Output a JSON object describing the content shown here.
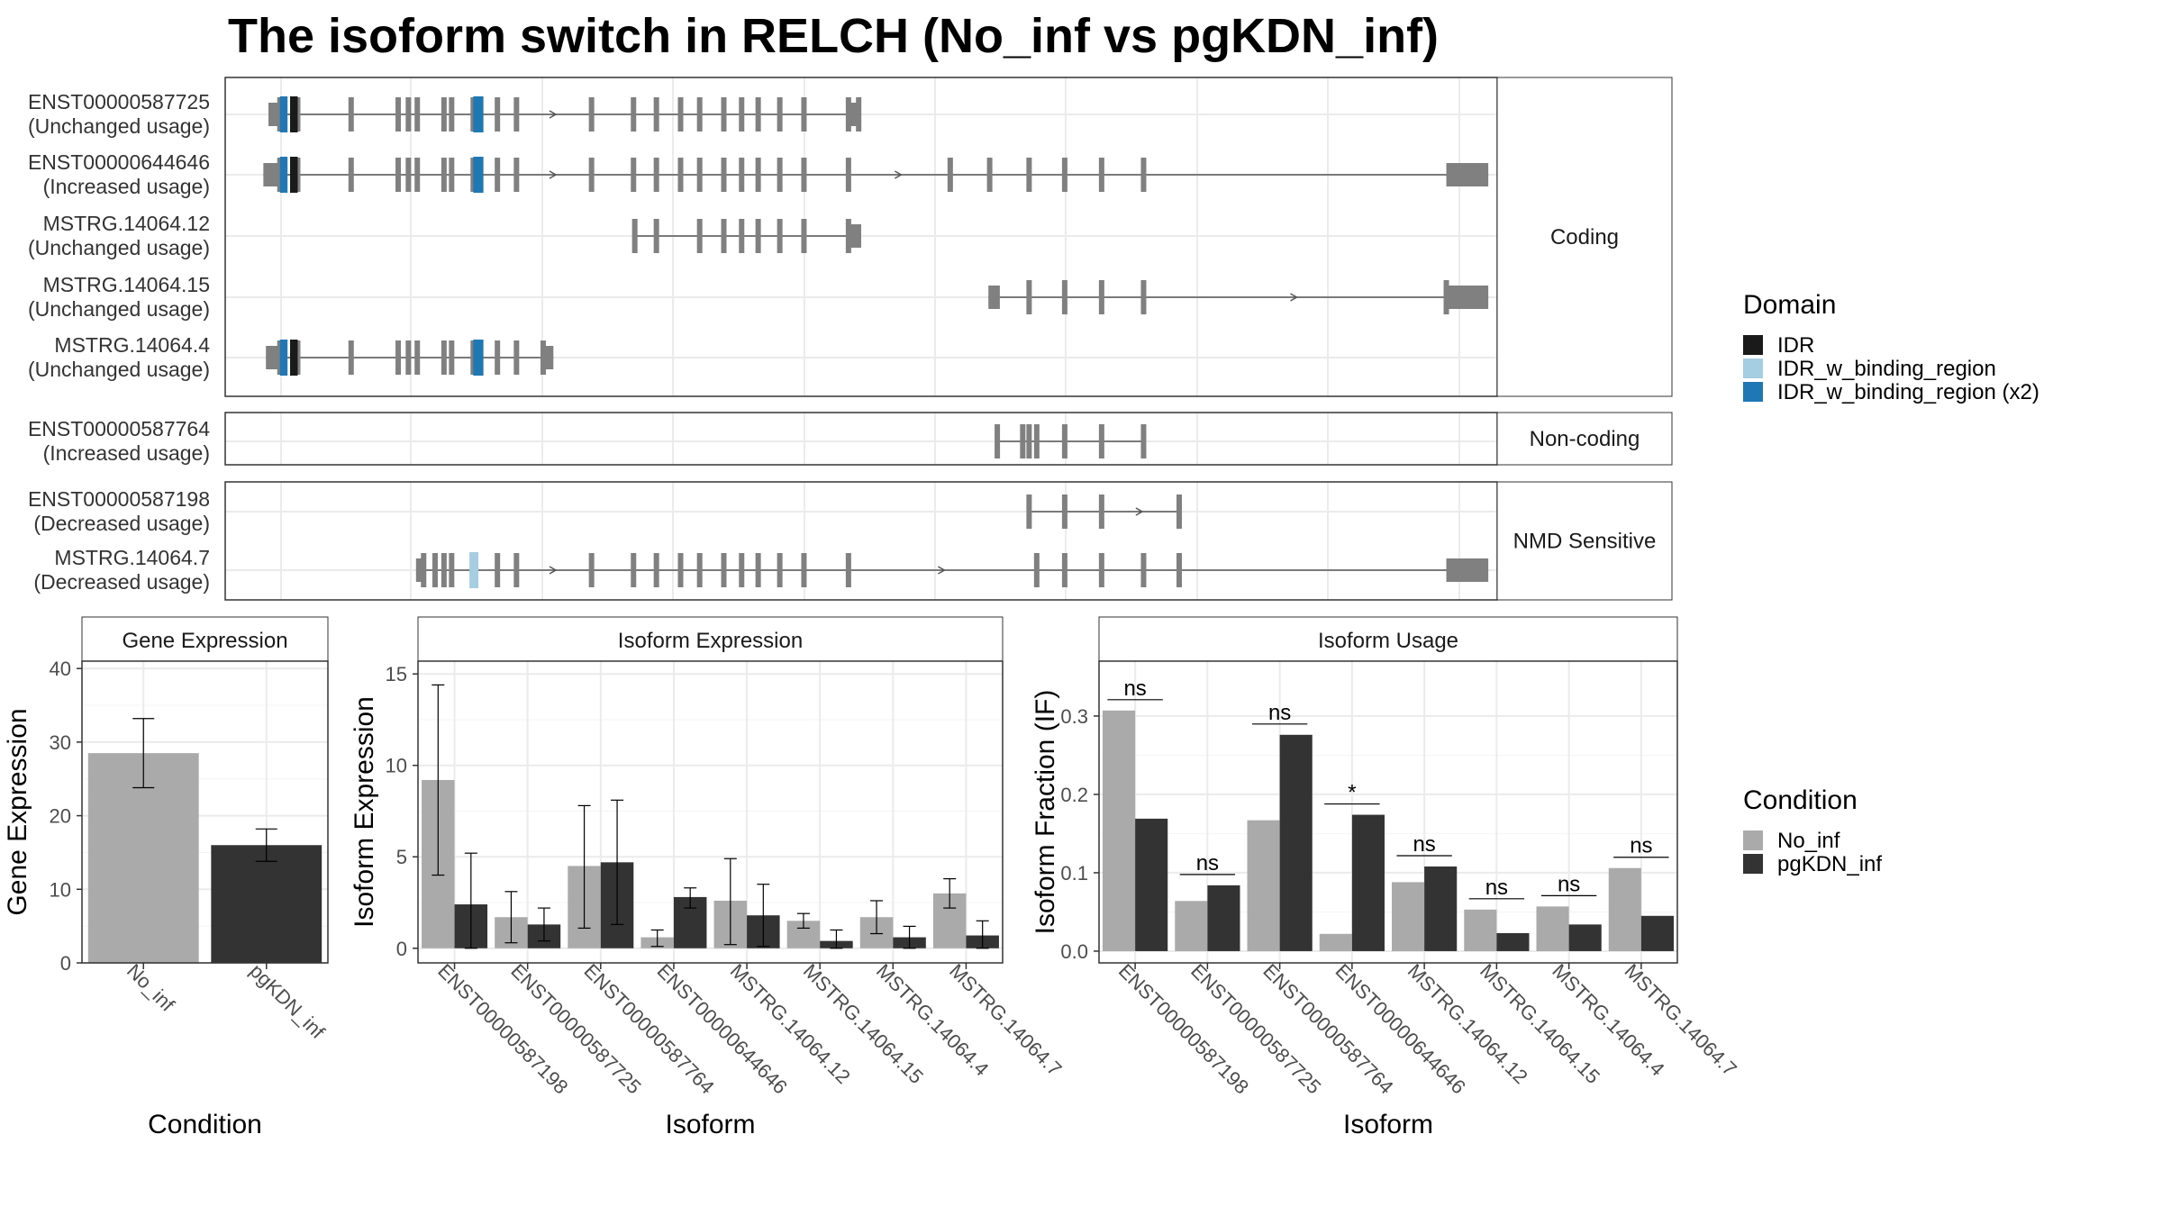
{
  "title": "The isoform switch in RELCH (No_inf vs pgKDN_inf)",
  "colors": {
    "exon": "#808080",
    "IDR": "#1a1a1a",
    "IDR_w_binding_region": "#a6cee3",
    "IDR_w_binding_region_x2": "#1f78b4",
    "No_inf": "#aaaaaa",
    "pgKDN_inf": "#333333"
  },
  "structure_panels": [
    {
      "name": "Coding",
      "transcripts": [
        {
          "id": "ENST00000587725",
          "usage": "(Unchanged usage)",
          "start": 0.034,
          "end": 0.5,
          "utr5": [
            0.034,
            0.043
          ],
          "exons": [
            0.043,
            0.057,
            0.099,
            0.136,
            0.144,
            0.151,
            0.172,
            0.178,
            0.195,
            0.214,
            0.229,
            0.288,
            0.321,
            0.339,
            0.358,
            0.373,
            0.392,
            0.406,
            0.419,
            0.436,
            0.455,
            0.49,
            0.498
          ],
          "utr3": [
            0.49,
            0.5
          ],
          "idr": [
            0.043,
            0.049,
            0.051,
            0.057
          ],
          "domains": [
            {
              "from": 0.043,
              "to": 0.049,
              "type": "IDR_w_binding_region_x2"
            },
            {
              "from": 0.051,
              "to": 0.057,
              "type": "IDR"
            },
            {
              "from": 0.195,
              "to": 0.203,
              "type": "IDR_w_binding_region_x2"
            }
          ]
        },
        {
          "id": "ENST00000644646",
          "usage": "(Increased usage)",
          "start": 0.03,
          "end": 0.993,
          "utr5": [
            0.03,
            0.043
          ],
          "exons": [
            0.043,
            0.057,
            0.099,
            0.136,
            0.144,
            0.151,
            0.172,
            0.178,
            0.195,
            0.214,
            0.229,
            0.288,
            0.321,
            0.339,
            0.358,
            0.373,
            0.392,
            0.406,
            0.419,
            0.436,
            0.455,
            0.49,
            0.57,
            0.601,
            0.632,
            0.66,
            0.689,
            0.722
          ],
          "utr3": [
            0.96,
            0.993
          ],
          "domains": [
            {
              "from": 0.043,
              "to": 0.049,
              "type": "IDR_w_binding_region_x2"
            },
            {
              "from": 0.051,
              "to": 0.057,
              "type": "IDR"
            },
            {
              "from": 0.195,
              "to": 0.203,
              "type": "IDR_w_binding_region_x2"
            }
          ]
        },
        {
          "id": "MSTRG.14064.12",
          "usage": "(Unchanged usage)",
          "start": 0.322,
          "end": 0.5,
          "utr5": [],
          "exons": [
            0.322,
            0.339,
            0.373,
            0.392,
            0.406,
            0.419,
            0.436,
            0.455,
            0.49
          ],
          "utr3": [
            0.49,
            0.5
          ],
          "domains": []
        },
        {
          "id": "MSTRG.14064.15",
          "usage": "(Unchanged usage)",
          "start": 0.6,
          "end": 0.993,
          "utr5": [
            0.6,
            0.609
          ],
          "exons": [
            0.632,
            0.66,
            0.689,
            0.722,
            0.96
          ],
          "utr3": [
            0.96,
            0.993
          ],
          "domains": []
        },
        {
          "id": "MSTRG.14064.4",
          "usage": "(Unchanged usage)",
          "start": 0.032,
          "end": 0.258,
          "utr5": [
            0.032,
            0.043
          ],
          "exons": [
            0.043,
            0.057,
            0.099,
            0.136,
            0.144,
            0.151,
            0.172,
            0.178,
            0.195,
            0.214,
            0.229,
            0.25
          ],
          "utr3": [
            0.25,
            0.258
          ],
          "domains": [
            {
              "from": 0.043,
              "to": 0.049,
              "type": "IDR_w_binding_region_x2"
            },
            {
              "from": 0.051,
              "to": 0.057,
              "type": "IDR"
            },
            {
              "from": 0.195,
              "to": 0.203,
              "type": "IDR_w_binding_region_x2"
            }
          ]
        }
      ]
    },
    {
      "name": "Non-coding",
      "transcripts": [
        {
          "id": "ENST00000587764",
          "usage": "(Increased usage)",
          "start": 0.607,
          "end": 0.722,
          "utr5": [],
          "exons": [
            0.607,
            0.627,
            0.632,
            0.638,
            0.66,
            0.689,
            0.722
          ],
          "utr3": [],
          "domains": []
        }
      ]
    },
    {
      "name": "NMD Sensitive",
      "transcripts": [
        {
          "id": "ENST00000587198",
          "usage": "(Decreased usage)",
          "start": 0.632,
          "end": 0.75,
          "utr5": [],
          "exons": [
            0.632,
            0.66,
            0.689,
            0.75
          ],
          "utr3": [],
          "domains": []
        },
        {
          "id": "MSTRG.14064.7",
          "usage": "(Decreased usage)",
          "start": 0.15,
          "end": 0.993,
          "utr5": [
            0.15,
            0.156
          ],
          "exons": [
            0.156,
            0.165,
            0.172,
            0.178,
            0.214,
            0.229,
            0.288,
            0.321,
            0.339,
            0.358,
            0.373,
            0.392,
            0.406,
            0.419,
            0.436,
            0.455,
            0.49,
            0.638,
            0.66,
            0.689,
            0.722,
            0.75
          ],
          "utr3": [
            0.96,
            0.993
          ],
          "domains": [
            {
              "from": 0.192,
              "to": 0.199,
              "type": "IDR_w_binding_region"
            }
          ]
        }
      ]
    }
  ],
  "legend_domain": {
    "title": "Domain",
    "items": [
      {
        "label": "IDR",
        "color": "#1a1a1a"
      },
      {
        "label": "IDR_w_binding_region",
        "color": "#a6cee3"
      },
      {
        "label": "IDR_w_binding_region (x2)",
        "color": "#1f78b4"
      }
    ]
  },
  "legend_condition": {
    "title": "Condition",
    "items": [
      {
        "label": "No_inf",
        "color": "#aaaaaa"
      },
      {
        "label": "pgKDN_inf",
        "color": "#333333"
      }
    ]
  },
  "chart_data": [
    {
      "type": "bar",
      "title": "Gene Expression",
      "xlabel": "Condition",
      "ylabel": "Gene Expression",
      "categories": [
        "No_inf",
        "pgKDN_inf"
      ],
      "values": [
        28.5,
        16.0
      ],
      "error": [
        [
          23.8,
          33.2
        ],
        [
          13.8,
          18.2
        ]
      ],
      "ylim": [
        0,
        41
      ],
      "yticks": [
        0,
        10,
        20,
        30,
        40
      ],
      "grid": true
    },
    {
      "type": "bar",
      "title": "Isoform Expression",
      "xlabel": "Isoform",
      "ylabel": "Isoform Expression",
      "categories": [
        "ENST00000587198",
        "ENST00000587725",
        "ENST00000587764",
        "ENST00000644646",
        "MSTRG.14064.12",
        "MSTRG.14064.15",
        "MSTRG.14064.4",
        "MSTRG.14064.7"
      ],
      "series": [
        {
          "name": "No_inf",
          "values": [
            9.2,
            1.7,
            4.5,
            0.6,
            2.6,
            1.5,
            1.7,
            3.0
          ],
          "error": [
            [
              4.0,
              14.4
            ],
            [
              0.3,
              3.1
            ],
            [
              1.1,
              7.8
            ],
            [
              0.1,
              1.0
            ],
            [
              0.2,
              4.9
            ],
            [
              1.1,
              1.9
            ],
            [
              0.8,
              2.6
            ],
            [
              2.2,
              3.8
            ]
          ]
        },
        {
          "name": "pgKDN_inf",
          "values": [
            2.4,
            1.3,
            4.7,
            2.8,
            1.8,
            0.4,
            0.6,
            0.7
          ],
          "error": [
            [
              0.0,
              5.2
            ],
            [
              0.4,
              2.2
            ],
            [
              1.3,
              8.1
            ],
            [
              2.2,
              3.3
            ],
            [
              0.1,
              3.5
            ],
            [
              0.0,
              1.0
            ],
            [
              0.0,
              1.2
            ],
            [
              0.0,
              1.5
            ]
          ]
        }
      ],
      "ylim": [
        -0.8,
        15.7
      ],
      "yticks": [
        0,
        5,
        10,
        15
      ],
      "grid": true
    },
    {
      "type": "bar",
      "title": "Isoform Usage",
      "xlabel": "Isoform",
      "ylabel": "Isoform Fraction (IF)",
      "categories": [
        "ENST00000587198",
        "ENST00000587725",
        "ENST00000587764",
        "ENST00000644646",
        "MSTRG.14064.12",
        "MSTRG.14064.15",
        "MSTRG.14064.4",
        "MSTRG.14064.7"
      ],
      "series": [
        {
          "name": "No_inf",
          "values": [
            0.307,
            0.064,
            0.167,
            0.022,
            0.088,
            0.053,
            0.057,
            0.106
          ]
        },
        {
          "name": "pgKDN_inf",
          "values": [
            0.169,
            0.084,
            0.276,
            0.174,
            0.108,
            0.023,
            0.034,
            0.045
          ]
        }
      ],
      "significance": [
        "ns",
        "ns",
        "ns",
        "*",
        "ns",
        "ns",
        "ns",
        "ns"
      ],
      "ylim": [
        -0.015,
        0.37
      ],
      "yticks": [
        0.0,
        0.1,
        0.2,
        0.3
      ],
      "ytick_labels": [
        "0.0",
        "0.1",
        "0.2",
        "0.3"
      ],
      "grid": true
    }
  ]
}
